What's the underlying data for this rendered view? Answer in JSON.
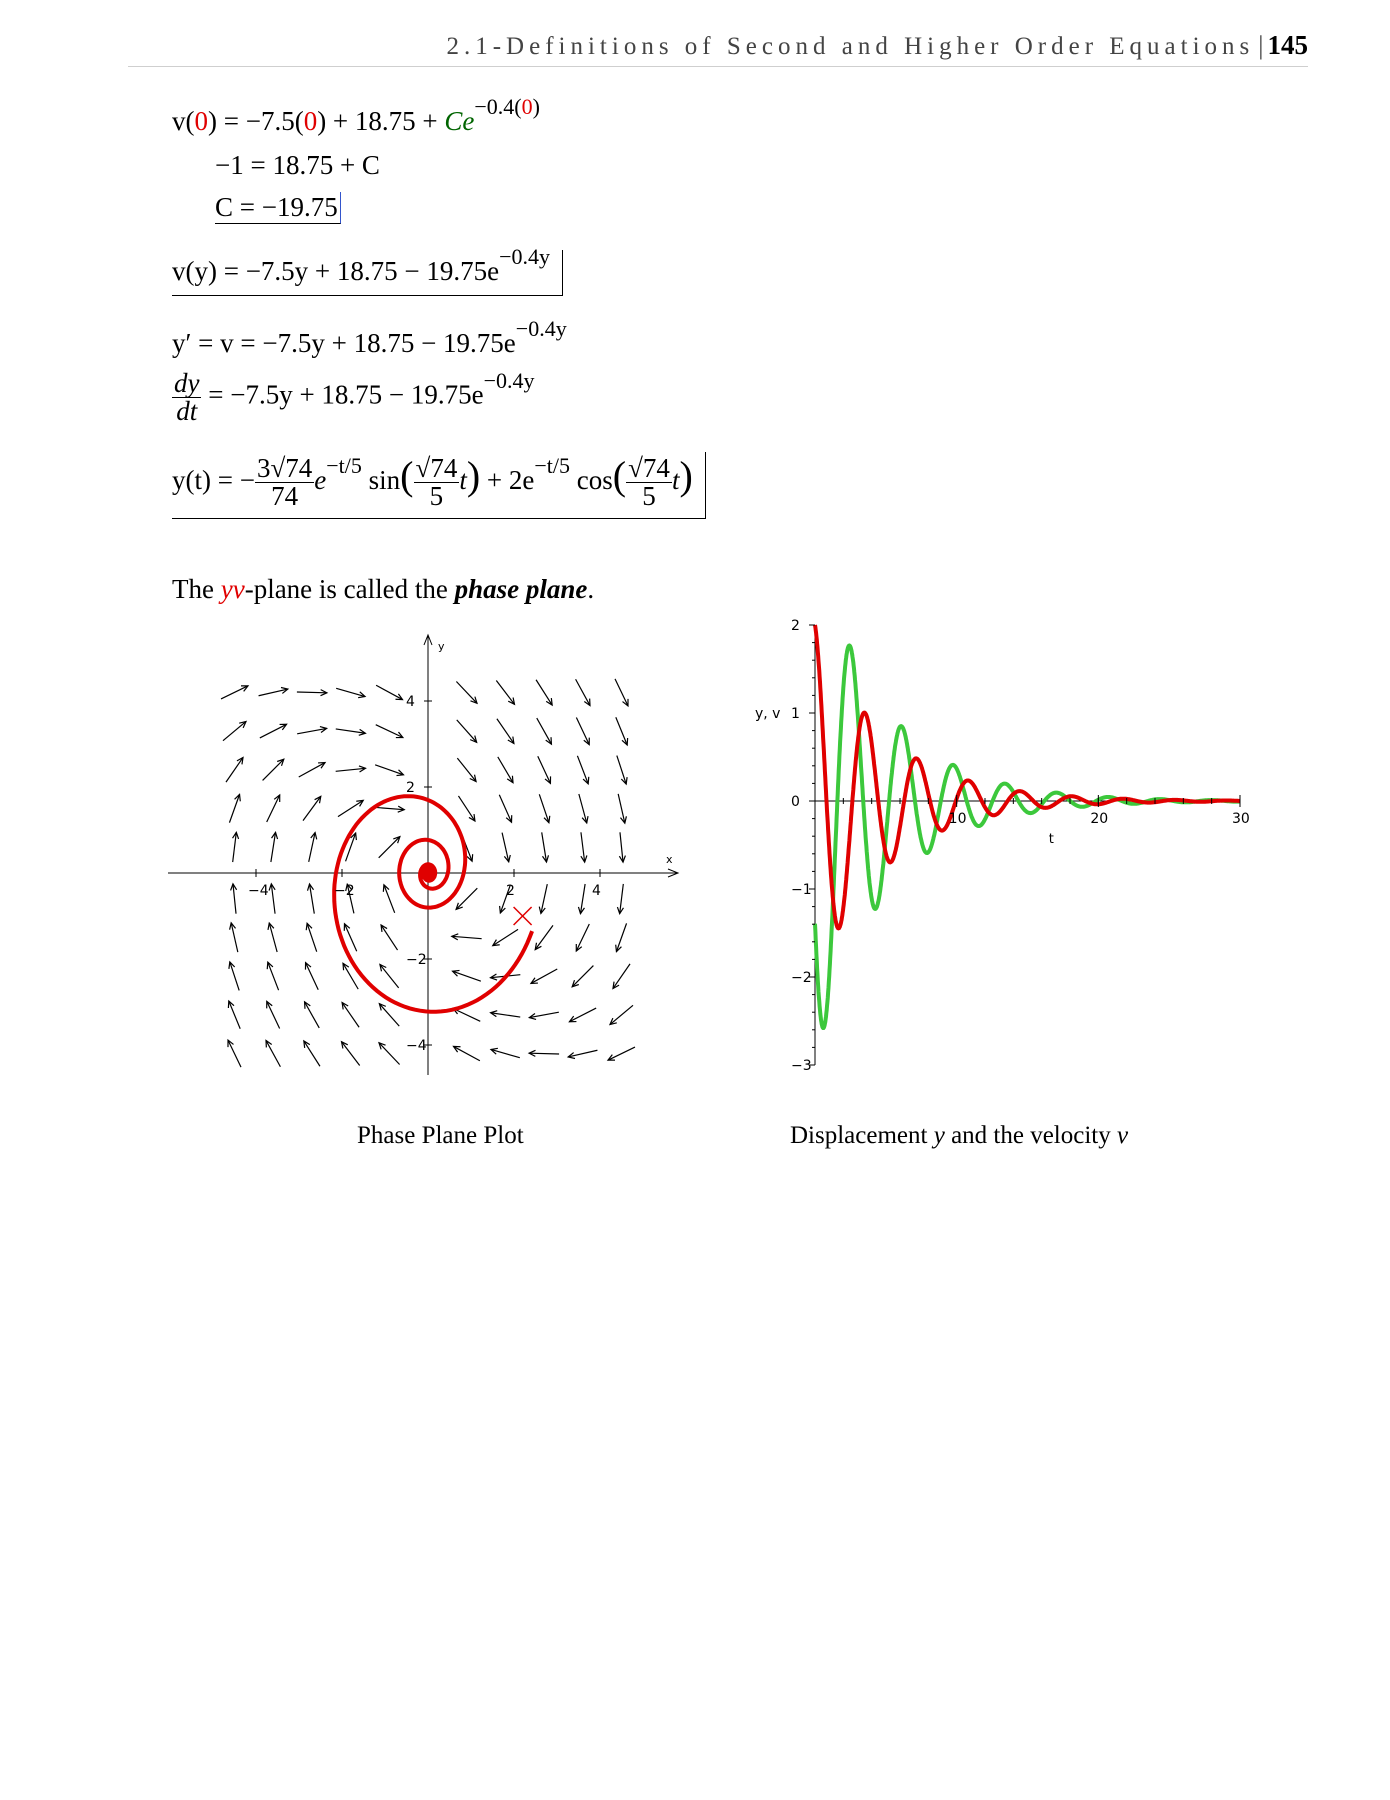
{
  "header": {
    "title": "2.1-Definitions of Second and Higher Order Equations",
    "separator": "|",
    "page_number": "145"
  },
  "equations": {
    "eq1_left": "v(",
    "eq1_zero_a": "0",
    "eq1_mid": ") = −7.5(",
    "eq1_zero_b": "0",
    "eq1_right": ") + 18.75 + ",
    "eq1_C": "Ce",
    "eq1_exp_a": "−0.4(",
    "eq1_exp_zero": "0",
    "eq1_exp_b": ")",
    "eq2": "−1 = 18.75 + C",
    "eq3": "C = −19.75",
    "eq4": "v(y) = −7.5y + 18.75 − 19.75e",
    "eq4_exp": "−0.4y",
    "eq5": "y′ = v = −7.5y + 18.75 − 19.75e",
    "eq5_exp": "−0.4y",
    "eq6_num": "dy",
    "eq6_den": "dt",
    "eq6": " = −7.5y + 18.75 − 19.75e",
    "eq6_exp": "−0.4y",
    "eq7_lhs": "y(t) = −",
    "eq7_coef_num": "3√74",
    "eq7_coef_den": "74",
    "eq7_e": "e",
    "eq7_exp": "−t/5",
    "eq7_sin": "sin",
    "eq7_arg_num": "√74",
    "eq7_arg_den": "5",
    "eq7_t": "t",
    "eq7_plus": " + 2e",
    "eq7_exp2": "−t/5",
    "eq7_cos": "cos",
    "eq7_arg2_num": "√74",
    "eq7_arg2_den": "5",
    "eq7_t2": "t"
  },
  "sentence": {
    "part1": "The ",
    "yv": "yv",
    "part2": "-plane is called the ",
    "phase_plane": "phase plane",
    "part3": "."
  },
  "captions": {
    "left": "Phase Plane Plot",
    "right_a": "Displacement ",
    "right_y": "y",
    "right_b": " and the velocity ",
    "right_v": "v"
  },
  "colors": {
    "red": "#e00000",
    "green": "#3cc83c",
    "trajectory": "#e00000"
  },
  "chart_data": [
    {
      "type": "phase-plane",
      "xlabel": "x",
      "ylabel": "y",
      "x_ticks": [
        "−4",
        "−2",
        "2",
        "4"
      ],
      "y_ticks": [
        "4",
        "2",
        "−2",
        "−4"
      ],
      "xlim": [
        -5.5,
        5.5
      ],
      "ylim": [
        -5,
        5
      ],
      "start_point": [
        2.2,
        -1.0
      ],
      "equilibrium": [
        0,
        0
      ]
    },
    {
      "type": "line",
      "xlabel": "t",
      "ylabel": "y, v",
      "xlim": [
        0,
        30
      ],
      "ylim": [
        -3,
        2
      ],
      "x_ticks": [
        "10",
        "20",
        "30"
      ],
      "y_ticks": [
        "2",
        "1",
        "0",
        "−1",
        "−2",
        "−3"
      ],
      "series": [
        {
          "name": "y",
          "color": "#e00000",
          "amplitude": 1.0,
          "decay": 0.2
        },
        {
          "name": "v",
          "color": "#3cc83c",
          "amplitude": 2.5,
          "decay": 0.2
        }
      ]
    }
  ]
}
